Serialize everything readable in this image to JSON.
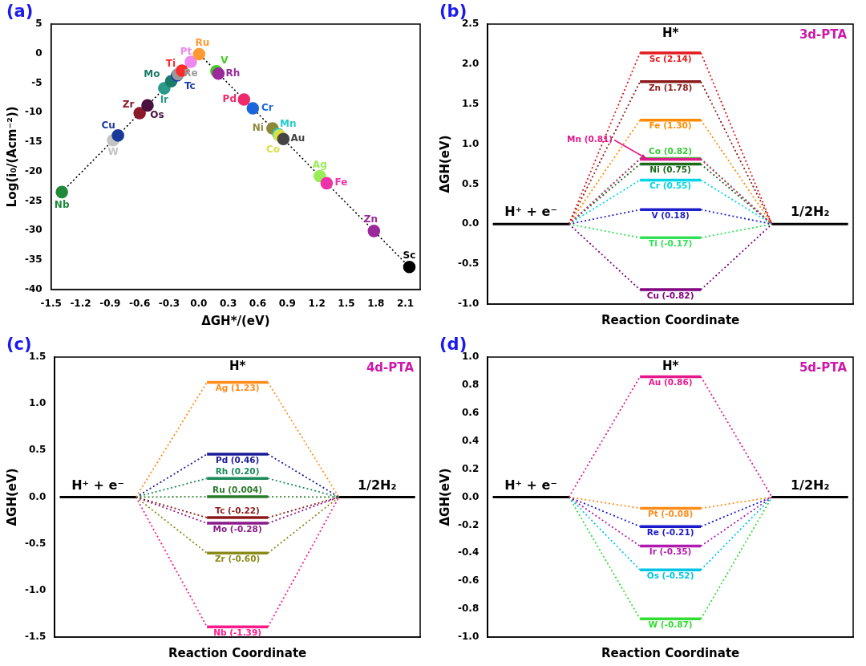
{
  "chart_data": [
    {
      "panel": "(a)",
      "type": "scatter",
      "x_label": "ΔGH*/(eV)",
      "y_label": "Log(i₀/(Acm⁻²))",
      "line_style": "dotted",
      "grid": false,
      "x": [
        -1.39,
        -0.87,
        -0.82,
        -0.6,
        -0.52,
        -0.35,
        -0.28,
        -0.22,
        -0.21,
        -0.17,
        -0.08,
        0.004,
        0.18,
        0.2,
        0.46,
        0.55,
        0.75,
        0.81,
        0.82,
        0.86,
        1.23,
        1.3,
        1.78,
        2.14
      ],
      "values": [
        -23.5,
        -14.7,
        -13.9,
        -10.1,
        -8.8,
        -5.9,
        -4.7,
        -3.7,
        -3.5,
        -2.9,
        -1.4,
        -0.1,
        -3.0,
        -3.4,
        -7.8,
        -9.3,
        -12.7,
        -13.7,
        -13.9,
        -14.5,
        -20.8,
        -22.0,
        -30.1,
        -36.2
      ],
      "point_labels": [
        "Nb",
        "W",
        "Cu",
        "Zr",
        "Os",
        "Ir",
        "Mo",
        "Tc",
        "Re",
        "Ti",
        "Pt",
        "Ru",
        "V",
        "Rh",
        "Pd",
        "Cr",
        "Ni",
        "Mn",
        "Co",
        "Au",
        "Ag",
        "Fe",
        "Zn",
        "Sc"
      ],
      "colors": [
        "#1f8a3a",
        "#c4c4c4",
        "#1a3a9a",
        "#8b1a2a",
        "#4a1040",
        "#2a9a8a",
        "#1a7a6a",
        "#1a3aaa",
        "#9a9a9a",
        "#ff2a2a",
        "#ee88ee",
        "#ff9933",
        "#44cc22",
        "#9a2a9a",
        "#ee2a6a",
        "#1a66dd",
        "#8a8a3a",
        "#22cccc",
        "#dddd44",
        "#444444",
        "#99ee55",
        "#ee33aa",
        "#9a2a9a",
        "#000000"
      ],
      "xlim": [
        -1.5,
        2.25
      ],
      "xticks": [
        -1.5,
        -1.2,
        -0.9,
        -0.6,
        -0.3,
        {
          "value": 0,
          "label": "0.0"
        },
        0.3,
        0.6,
        0.9,
        1.2,
        1.5,
        1.8,
        2.1
      ],
      "ylim": [
        -40,
        5
      ],
      "yticks": [
        -40,
        -35,
        -30,
        -25,
        -20,
        -15,
        -10,
        -5,
        0,
        5
      ]
    },
    {
      "panel": "(b)",
      "type": "line",
      "title": "3d-PTA",
      "x_label": "Reaction Coordinate",
      "y_label": "ΔGH(eV)",
      "categories": [
        "H⁺ + e⁻",
        "H*",
        "1/2H₂"
      ],
      "tick_labels": "y",
      "grid": false,
      "ylim": [
        -1,
        2.5
      ],
      "yticks": [
        {
          "value": -1,
          "label": "-1.0"
        },
        -0.5,
        {
          "value": 0,
          "label": "0.0"
        },
        0.5,
        {
          "value": 1,
          "label": "1.0"
        },
        1.5,
        {
          "value": 2,
          "label": "2.0"
        },
        2.5
      ],
      "series": [
        {
          "name": "Sc (2.14)",
          "color": "#e31a1c",
          "values": [
            0,
            2.14,
            0
          ]
        },
        {
          "name": "Zn (1.78)",
          "color": "#8b1a1a",
          "values": [
            0,
            1.78,
            0
          ]
        },
        {
          "name": "Fe (1.30)",
          "color": "#ff8c00",
          "values": [
            0,
            1.3,
            0
          ]
        },
        {
          "name": "Mn (0.81)",
          "color": "#e0198c",
          "values": [
            0,
            0.81,
            0
          ]
        },
        {
          "name": "Co (0.82)",
          "color": "#33cc33",
          "values": [
            0,
            0.82,
            0
          ]
        },
        {
          "name": "Ni (0.75)",
          "color": "#1a6a1a",
          "values": [
            0,
            0.75,
            0
          ]
        },
        {
          "name": "Cr (0.55)",
          "color": "#00d5e5",
          "values": [
            0,
            0.55,
            0
          ]
        },
        {
          "name": "V (0.18)",
          "color": "#1f1fcc",
          "values": [
            0,
            0.18,
            0
          ]
        },
        {
          "name": "Ti (-0.17)",
          "color": "#33e055",
          "values": [
            0,
            -0.17,
            0
          ]
        },
        {
          "name": "Cu (-0.82)",
          "color": "#800080",
          "values": [
            0,
            -0.82,
            0
          ]
        }
      ]
    },
    {
      "panel": "(c)",
      "type": "line",
      "title": "4d-PTA",
      "x_label": "Reaction Coordinate",
      "y_label": "ΔGH(eV)",
      "categories": [
        "H⁺ + e⁻",
        "H*",
        "1/2H₂"
      ],
      "tick_labels": "y",
      "grid": false,
      "ylim": [
        -1.5,
        1.5
      ],
      "yticks": [
        -1.5,
        {
          "value": -1,
          "label": "-1.0"
        },
        -0.5,
        {
          "value": 0,
          "label": "0.0"
        },
        0.5,
        {
          "value": 1,
          "label": "1.0"
        },
        1.5
      ],
      "series": [
        {
          "name": "Ag (1.23)",
          "color": "#ff8c1a",
          "values": [
            0,
            1.23,
            0
          ]
        },
        {
          "name": "Pd (0.46)",
          "color": "#1a1a99",
          "values": [
            0,
            0.46,
            0
          ]
        },
        {
          "name": "Rh (0.20)",
          "color": "#1a8a5a",
          "values": [
            0,
            0.2,
            0
          ]
        },
        {
          "name": "Ru (0.004)",
          "color": "#2a7a2a",
          "values": [
            0,
            0.004,
            0
          ]
        },
        {
          "name": "Tc (-0.22)",
          "color": "#8b1a1a",
          "values": [
            0,
            -0.22,
            0
          ]
        },
        {
          "name": "Mo (-0.28)",
          "color": "#8a1a8a",
          "values": [
            0,
            -0.28,
            0
          ]
        },
        {
          "name": "Zr (-0.60)",
          "color": "#8a8a1a",
          "values": [
            0,
            -0.6,
            0
          ]
        },
        {
          "name": "Nb (-1.39)",
          "color": "#ff1a8c",
          "values": [
            0,
            -1.39,
            0
          ]
        }
      ]
    },
    {
      "panel": "(d)",
      "type": "line",
      "title": "5d-PTA",
      "x_label": "Reaction Coordinate",
      "y_label": "ΔGH(eV)",
      "categories": [
        "H⁺ + e⁻",
        "H*",
        "1/2H₂"
      ],
      "tick_labels": "y",
      "grid": false,
      "ylim": [
        -1,
        1
      ],
      "yticks": [
        {
          "value": -1,
          "label": "-1.0"
        },
        -0.8,
        -0.6,
        -0.4,
        -0.2,
        {
          "value": 0,
          "label": "0.0"
        },
        0.2,
        0.4,
        0.6,
        0.8,
        {
          "value": 1,
          "label": "1.0"
        }
      ],
      "series": [
        {
          "name": "Au (0.86)",
          "color": "#e6198c",
          "values": [
            0,
            0.86,
            0
          ]
        },
        {
          "name": "Pt (-0.08)",
          "color": "#ff8c1a",
          "values": [
            0,
            -0.08,
            0
          ]
        },
        {
          "name": "Re (-0.21)",
          "color": "#1a1acc",
          "values": [
            0,
            -0.21,
            0
          ]
        },
        {
          "name": "Ir (-0.35)",
          "color": "#b01ab0",
          "values": [
            0,
            -0.35,
            0
          ]
        },
        {
          "name": "Os (-0.52)",
          "color": "#00c5e5",
          "values": [
            0,
            -0.52,
            0
          ]
        },
        {
          "name": "W (-0.87)",
          "color": "#33dd33",
          "values": [
            0,
            -0.87,
            0
          ]
        }
      ]
    }
  ]
}
